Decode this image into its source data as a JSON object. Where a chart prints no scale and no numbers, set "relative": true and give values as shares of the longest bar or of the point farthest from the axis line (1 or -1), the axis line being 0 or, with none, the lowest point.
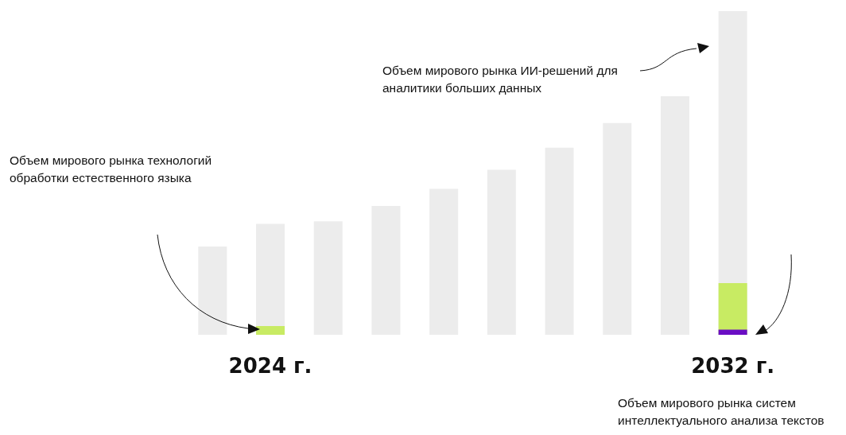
{
  "chart_data": {
    "type": "bar",
    "relative": true,
    "categories": [
      null,
      "2024 г.",
      null,
      null,
      null,
      null,
      null,
      null,
      null,
      "2032 г."
    ],
    "series": [
      {
        "color": "#ececec",
        "values": [
          0.273,
          0.343,
          0.351,
          0.398,
          0.451,
          0.51,
          0.578,
          0.654,
          0.737,
          1
        ]
      },
      {
        "color": "#c8eb63",
        "values": [
          null,
          0.027,
          null,
          null,
          null,
          null,
          null,
          null,
          null,
          0.16
        ]
      },
      {
        "color": "#6a0dc4",
        "values": [
          null,
          null,
          null,
          null,
          null,
          null,
          null,
          null,
          null,
          0.016
        ]
      }
    ],
    "annotations": [
      "Объем мирового рынка технологий обработки естественного языка",
      "Объем мирового рынка ИИ-решений для аналитики больших данных",
      "Объем мирового рынка систем интеллектуального анализа текстов"
    ]
  }
}
